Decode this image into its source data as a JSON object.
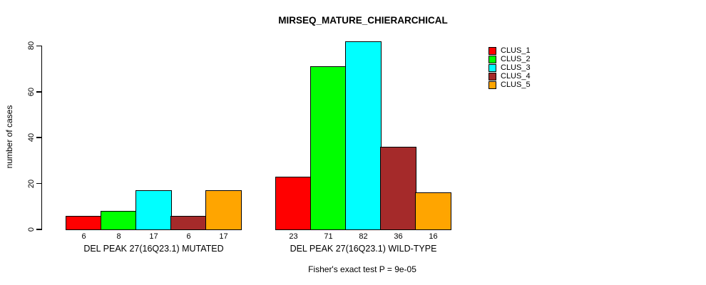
{
  "chart_data": {
    "type": "bar",
    "title": "MIRSEQ_MATURE_CHIERARCHICAL",
    "ylabel": "number of cases",
    "xlabel": "",
    "ylim": [
      0,
      80
    ],
    "yticks": [
      0,
      20,
      40,
      60,
      80
    ],
    "grid": false,
    "legend_position": "top-right",
    "categories": [
      "DEL PEAK 27(16Q23.1) MUTATED",
      "DEL PEAK 27(16Q23.1) WILD-TYPE"
    ],
    "series": [
      {
        "name": "CLUS_1",
        "color": "#FF0000",
        "values": [
          6,
          23
        ]
      },
      {
        "name": "CLUS_2",
        "color": "#00FF00",
        "values": [
          8,
          71
        ]
      },
      {
        "name": "CLUS_3",
        "color": "#00FFFF",
        "values": [
          17,
          82
        ]
      },
      {
        "name": "CLUS_4",
        "color": "#A52A2A",
        "values": [
          6,
          36
        ]
      },
      {
        "name": "CLUS_5",
        "color": "#FFA500",
        "values": [
          17,
          16
        ]
      }
    ],
    "bar_value_labels": [
      [
        "6",
        "8",
        "17",
        "6",
        "17"
      ],
      [
        "23",
        "71",
        "82",
        "36",
        "16"
      ]
    ],
    "footnote": "Fisher's exact test P = 9e-05",
    "axis_color": "#000000",
    "text_color": "#000000",
    "background_color": "#FFFFFF"
  }
}
